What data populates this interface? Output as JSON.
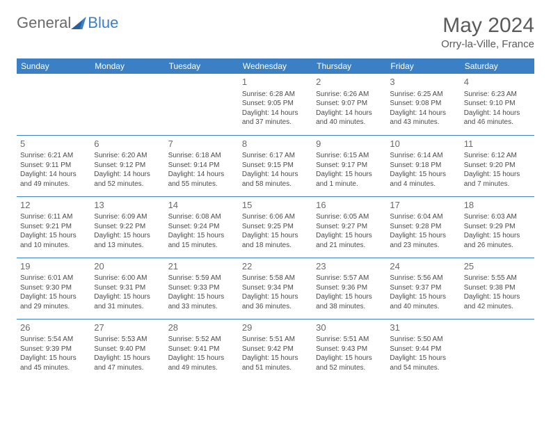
{
  "brand": {
    "part1": "General",
    "part2": "Blue"
  },
  "title": "May 2024",
  "subtitle": "Orry-la-Ville, France",
  "colors": {
    "header_bg": "#3b7fc4",
    "header_text": "#ffffff",
    "border": "#3b7fc4",
    "text": "#4a4a4a",
    "daynum": "#6a6a6a",
    "title": "#5a5a5a"
  },
  "weekdays": [
    "Sunday",
    "Monday",
    "Tuesday",
    "Wednesday",
    "Thursday",
    "Friday",
    "Saturday"
  ],
  "weeks": [
    [
      null,
      null,
      null,
      {
        "n": "1",
        "sr": "6:28 AM",
        "ss": "9:05 PM",
        "dl": "14 hours and 37 minutes."
      },
      {
        "n": "2",
        "sr": "6:26 AM",
        "ss": "9:07 PM",
        "dl": "14 hours and 40 minutes."
      },
      {
        "n": "3",
        "sr": "6:25 AM",
        "ss": "9:08 PM",
        "dl": "14 hours and 43 minutes."
      },
      {
        "n": "4",
        "sr": "6:23 AM",
        "ss": "9:10 PM",
        "dl": "14 hours and 46 minutes."
      }
    ],
    [
      {
        "n": "5",
        "sr": "6:21 AM",
        "ss": "9:11 PM",
        "dl": "14 hours and 49 minutes."
      },
      {
        "n": "6",
        "sr": "6:20 AM",
        "ss": "9:12 PM",
        "dl": "14 hours and 52 minutes."
      },
      {
        "n": "7",
        "sr": "6:18 AM",
        "ss": "9:14 PM",
        "dl": "14 hours and 55 minutes."
      },
      {
        "n": "8",
        "sr": "6:17 AM",
        "ss": "9:15 PM",
        "dl": "14 hours and 58 minutes."
      },
      {
        "n": "9",
        "sr": "6:15 AM",
        "ss": "9:17 PM",
        "dl": "15 hours and 1 minute."
      },
      {
        "n": "10",
        "sr": "6:14 AM",
        "ss": "9:18 PM",
        "dl": "15 hours and 4 minutes."
      },
      {
        "n": "11",
        "sr": "6:12 AM",
        "ss": "9:20 PM",
        "dl": "15 hours and 7 minutes."
      }
    ],
    [
      {
        "n": "12",
        "sr": "6:11 AM",
        "ss": "9:21 PM",
        "dl": "15 hours and 10 minutes."
      },
      {
        "n": "13",
        "sr": "6:09 AM",
        "ss": "9:22 PM",
        "dl": "15 hours and 13 minutes."
      },
      {
        "n": "14",
        "sr": "6:08 AM",
        "ss": "9:24 PM",
        "dl": "15 hours and 15 minutes."
      },
      {
        "n": "15",
        "sr": "6:06 AM",
        "ss": "9:25 PM",
        "dl": "15 hours and 18 minutes."
      },
      {
        "n": "16",
        "sr": "6:05 AM",
        "ss": "9:27 PM",
        "dl": "15 hours and 21 minutes."
      },
      {
        "n": "17",
        "sr": "6:04 AM",
        "ss": "9:28 PM",
        "dl": "15 hours and 23 minutes."
      },
      {
        "n": "18",
        "sr": "6:03 AM",
        "ss": "9:29 PM",
        "dl": "15 hours and 26 minutes."
      }
    ],
    [
      {
        "n": "19",
        "sr": "6:01 AM",
        "ss": "9:30 PM",
        "dl": "15 hours and 29 minutes."
      },
      {
        "n": "20",
        "sr": "6:00 AM",
        "ss": "9:31 PM",
        "dl": "15 hours and 31 minutes."
      },
      {
        "n": "21",
        "sr": "5:59 AM",
        "ss": "9:33 PM",
        "dl": "15 hours and 33 minutes."
      },
      {
        "n": "22",
        "sr": "5:58 AM",
        "ss": "9:34 PM",
        "dl": "15 hours and 36 minutes."
      },
      {
        "n": "23",
        "sr": "5:57 AM",
        "ss": "9:36 PM",
        "dl": "15 hours and 38 minutes."
      },
      {
        "n": "24",
        "sr": "5:56 AM",
        "ss": "9:37 PM",
        "dl": "15 hours and 40 minutes."
      },
      {
        "n": "25",
        "sr": "5:55 AM",
        "ss": "9:38 PM",
        "dl": "15 hours and 42 minutes."
      }
    ],
    [
      {
        "n": "26",
        "sr": "5:54 AM",
        "ss": "9:39 PM",
        "dl": "15 hours and 45 minutes."
      },
      {
        "n": "27",
        "sr": "5:53 AM",
        "ss": "9:40 PM",
        "dl": "15 hours and 47 minutes."
      },
      {
        "n": "28",
        "sr": "5:52 AM",
        "ss": "9:41 PM",
        "dl": "15 hours and 49 minutes."
      },
      {
        "n": "29",
        "sr": "5:51 AM",
        "ss": "9:42 PM",
        "dl": "15 hours and 51 minutes."
      },
      {
        "n": "30",
        "sr": "5:51 AM",
        "ss": "9:43 PM",
        "dl": "15 hours and 52 minutes."
      },
      {
        "n": "31",
        "sr": "5:50 AM",
        "ss": "9:44 PM",
        "dl": "15 hours and 54 minutes."
      },
      null
    ]
  ],
  "labels": {
    "sunrise": "Sunrise: ",
    "sunset": "Sunset: ",
    "daylight": "Daylight: "
  }
}
